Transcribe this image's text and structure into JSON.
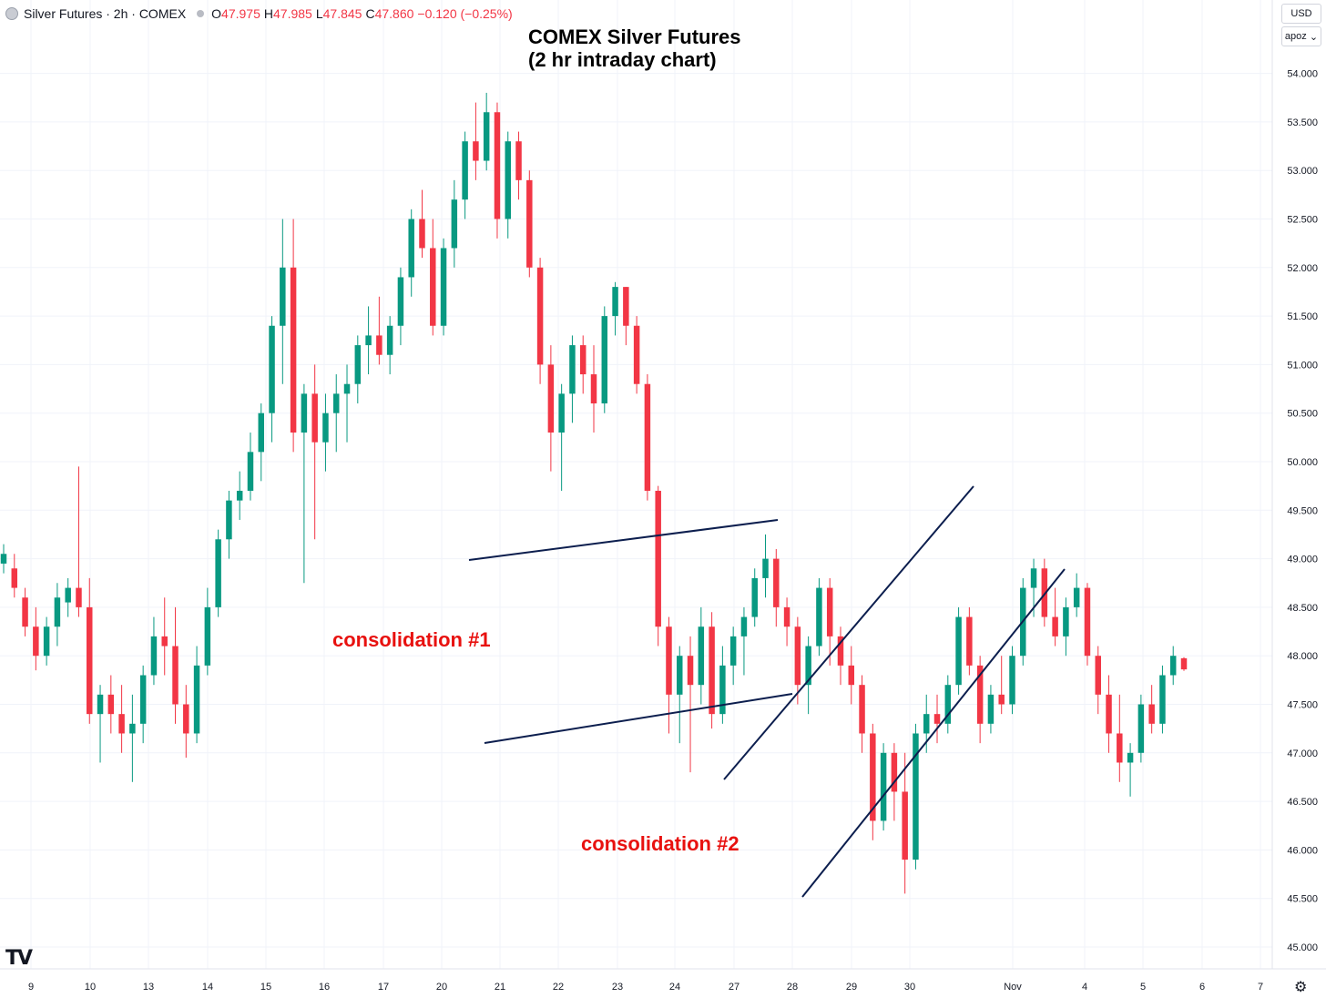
{
  "header": {
    "symbol": "Silver Futures · 2h · COMEX",
    "o_label": "O",
    "o_value": "47.975",
    "h_label": "H",
    "h_value": "47.985",
    "l_label": "L",
    "l_value": "47.845",
    "c_label": "C",
    "c_value": "47.860",
    "change": "−0.120 (−0.25%)"
  },
  "title_line1": "COMEX Silver Futures",
  "title_line2": "(2 hr intraday chart)",
  "annotations": {
    "consolidation1": "consolidation #1",
    "consolidation2": "consolidation #2"
  },
  "axis_controls": {
    "currency": "USD",
    "scale": "apoz"
  },
  "brand_logo": "TV",
  "colors": {
    "up": "#089981",
    "down": "#f23645",
    "trendline": "#0c1e4e",
    "annotation": "#e8110f",
    "grid": "#f0f3fa"
  },
  "chart_data": {
    "type": "candlestick",
    "instrument": "Silver Futures · 2h · COMEX",
    "ylim": [
      44.8,
      54.35
    ],
    "y_ticks": [
      "54.000",
      "53.500",
      "53.000",
      "52.500",
      "52.000",
      "51.500",
      "51.000",
      "50.500",
      "50.000",
      "49.500",
      "49.000",
      "48.500",
      "48.000",
      "47.500",
      "47.000",
      "46.500",
      "46.000",
      "45.500",
      "45.000"
    ],
    "x_ticks": [
      "9",
      "10",
      "13",
      "14",
      "15",
      "16",
      "17",
      "20",
      "21",
      "22",
      "23",
      "24",
      "27",
      "28",
      "29",
      "30",
      "Nov",
      "4",
      "5",
      "6",
      "7"
    ],
    "candles": [
      [
        48.95,
        49.15,
        48.85,
        49.05
      ],
      [
        48.9,
        49.05,
        48.6,
        48.7
      ],
      [
        48.6,
        48.7,
        48.2,
        48.3
      ],
      [
        48.3,
        48.5,
        47.85,
        48.0
      ],
      [
        48.0,
        48.4,
        47.9,
        48.3
      ],
      [
        48.3,
        48.75,
        48.1,
        48.6
      ],
      [
        48.55,
        48.8,
        48.4,
        48.7
      ],
      [
        48.7,
        49.95,
        48.4,
        48.5
      ],
      [
        48.5,
        48.8,
        47.3,
        47.4
      ],
      [
        47.4,
        47.7,
        46.9,
        47.6
      ],
      [
        47.6,
        47.8,
        47.2,
        47.4
      ],
      [
        47.4,
        47.7,
        47.0,
        47.2
      ],
      [
        47.2,
        47.6,
        46.7,
        47.3
      ],
      [
        47.3,
        47.9,
        47.1,
        47.8
      ],
      [
        47.8,
        48.4,
        47.7,
        48.2
      ],
      [
        48.2,
        48.6,
        47.8,
        48.1
      ],
      [
        48.1,
        48.5,
        47.3,
        47.5
      ],
      [
        47.5,
        47.7,
        46.95,
        47.2
      ],
      [
        47.2,
        48.1,
        47.1,
        47.9
      ],
      [
        47.9,
        48.7,
        47.8,
        48.5
      ],
      [
        48.5,
        49.3,
        48.4,
        49.2
      ],
      [
        49.2,
        49.7,
        49.0,
        49.6
      ],
      [
        49.6,
        49.9,
        49.4,
        49.7
      ],
      [
        49.7,
        50.3,
        49.6,
        50.1
      ],
      [
        50.1,
        50.6,
        49.8,
        50.5
      ],
      [
        50.5,
        51.5,
        50.2,
        51.4
      ],
      [
        51.4,
        52.5,
        50.8,
        52.0
      ],
      [
        52.0,
        52.5,
        50.1,
        50.3
      ],
      [
        50.3,
        50.8,
        48.75,
        50.7
      ],
      [
        50.7,
        51.0,
        49.2,
        50.2
      ],
      [
        50.2,
        50.7,
        49.9,
        50.5
      ],
      [
        50.5,
        50.9,
        50.1,
        50.7
      ],
      [
        50.7,
        51.0,
        50.2,
        50.8
      ],
      [
        50.8,
        51.3,
        50.6,
        51.2
      ],
      [
        51.2,
        51.6,
        50.9,
        51.3
      ],
      [
        51.3,
        51.7,
        51.0,
        51.1
      ],
      [
        51.1,
        51.5,
        50.9,
        51.4
      ],
      [
        51.4,
        52.0,
        51.2,
        51.9
      ],
      [
        51.9,
        52.6,
        51.7,
        52.5
      ],
      [
        52.5,
        52.8,
        52.1,
        52.2
      ],
      [
        52.2,
        52.5,
        51.3,
        51.4
      ],
      [
        51.4,
        52.3,
        51.3,
        52.2
      ],
      [
        52.2,
        52.9,
        52.0,
        52.7
      ],
      [
        52.7,
        53.4,
        52.5,
        53.3
      ],
      [
        53.3,
        53.7,
        52.9,
        53.1
      ],
      [
        53.1,
        53.8,
        53.0,
        53.6
      ],
      [
        53.6,
        53.7,
        52.3,
        52.5
      ],
      [
        52.5,
        53.4,
        52.3,
        53.3
      ],
      [
        53.3,
        53.4,
        52.7,
        52.9
      ],
      [
        52.9,
        53.0,
        51.9,
        52.0
      ],
      [
        52.0,
        52.1,
        50.8,
        51.0
      ],
      [
        51.0,
        51.2,
        49.9,
        50.3
      ],
      [
        50.3,
        50.8,
        49.7,
        50.7
      ],
      [
        50.7,
        51.3,
        50.4,
        51.2
      ],
      [
        51.2,
        51.3,
        50.7,
        50.9
      ],
      [
        50.9,
        51.2,
        50.3,
        50.6
      ],
      [
        50.6,
        51.6,
        50.5,
        51.5
      ],
      [
        51.5,
        51.85,
        51.3,
        51.8
      ],
      [
        51.8,
        51.8,
        51.2,
        51.4
      ],
      [
        51.4,
        51.5,
        50.7,
        50.8
      ],
      [
        50.8,
        50.9,
        49.6,
        49.7
      ],
      [
        49.7,
        49.75,
        48.1,
        48.3
      ],
      [
        48.3,
        48.4,
        47.2,
        47.6
      ],
      [
        47.6,
        48.1,
        47.1,
        48.0
      ],
      [
        48.0,
        48.2,
        46.8,
        47.7
      ],
      [
        47.7,
        48.5,
        47.5,
        48.3
      ],
      [
        48.3,
        48.45,
        47.25,
        47.4
      ],
      [
        47.4,
        48.1,
        47.3,
        47.9
      ],
      [
        47.9,
        48.3,
        47.7,
        48.2
      ],
      [
        48.2,
        48.5,
        47.8,
        48.4
      ],
      [
        48.4,
        48.9,
        48.3,
        48.8
      ],
      [
        48.8,
        49.25,
        48.6,
        49.0
      ],
      [
        49.0,
        49.1,
        48.3,
        48.5
      ],
      [
        48.5,
        48.6,
        48.1,
        48.3
      ],
      [
        48.3,
        48.4,
        47.5,
        47.7
      ],
      [
        47.7,
        48.2,
        47.4,
        48.1
      ],
      [
        48.1,
        48.8,
        48.0,
        48.7
      ],
      [
        48.7,
        48.8,
        47.9,
        48.2
      ],
      [
        48.2,
        48.3,
        47.7,
        47.9
      ],
      [
        47.9,
        48.1,
        47.5,
        47.7
      ],
      [
        47.7,
        47.8,
        47.0,
        47.2
      ],
      [
        47.2,
        47.3,
        46.1,
        46.3
      ],
      [
        46.3,
        47.1,
        46.2,
        47.0
      ],
      [
        47.0,
        47.1,
        46.3,
        46.6
      ],
      [
        46.6,
        47.0,
        45.55,
        45.9
      ],
      [
        45.9,
        47.3,
        45.8,
        47.2
      ],
      [
        47.2,
        47.6,
        47.0,
        47.4
      ],
      [
        47.4,
        47.6,
        47.1,
        47.3
      ],
      [
        47.3,
        47.8,
        47.2,
        47.7
      ],
      [
        47.7,
        48.5,
        47.6,
        48.4
      ],
      [
        48.4,
        48.5,
        47.8,
        47.9
      ],
      [
        47.9,
        48.0,
        47.1,
        47.3
      ],
      [
        47.3,
        47.7,
        47.2,
        47.6
      ],
      [
        47.6,
        48.0,
        47.4,
        47.5
      ],
      [
        47.5,
        48.1,
        47.4,
        48.0
      ],
      [
        48.0,
        48.8,
        47.9,
        48.7
      ],
      [
        48.7,
        49.0,
        48.4,
        48.9
      ],
      [
        48.9,
        49.0,
        48.3,
        48.4
      ],
      [
        48.4,
        48.7,
        48.1,
        48.2
      ],
      [
        48.2,
        48.6,
        48.0,
        48.5
      ],
      [
        48.5,
        48.85,
        48.4,
        48.7
      ],
      [
        48.7,
        48.75,
        47.9,
        48.0
      ],
      [
        48.0,
        48.1,
        47.4,
        47.6
      ],
      [
        47.6,
        47.8,
        47.0,
        47.2
      ],
      [
        47.2,
        47.6,
        46.7,
        46.9
      ],
      [
        46.9,
        47.1,
        46.55,
        47.0
      ],
      [
        47.0,
        47.6,
        46.9,
        47.5
      ],
      [
        47.5,
        47.7,
        47.2,
        47.3
      ],
      [
        47.3,
        47.9,
        47.2,
        47.8
      ],
      [
        47.8,
        48.1,
        47.7,
        48.0
      ],
      [
        47.975,
        47.985,
        47.845,
        47.86
      ]
    ],
    "trendlines": [
      {
        "label": "consolidation #1 upper",
        "start": [
          "Oct 20",
          48.98
        ],
        "end": [
          "Oct 27",
          49.38
        ]
      },
      {
        "label": "consolidation #1 lower",
        "start": [
          "Oct 20",
          47.1
        ],
        "end": [
          "Oct 27",
          47.6
        ]
      },
      {
        "label": "consolidation #2 upper",
        "start": [
          "Oct 27",
          46.72
        ],
        "end": [
          "Oct 30",
          49.75
        ]
      },
      {
        "label": "consolidation #2 lower",
        "start": [
          "Oct 28",
          45.52
        ],
        "end": [
          "Nov 3",
          48.88
        ]
      }
    ]
  }
}
